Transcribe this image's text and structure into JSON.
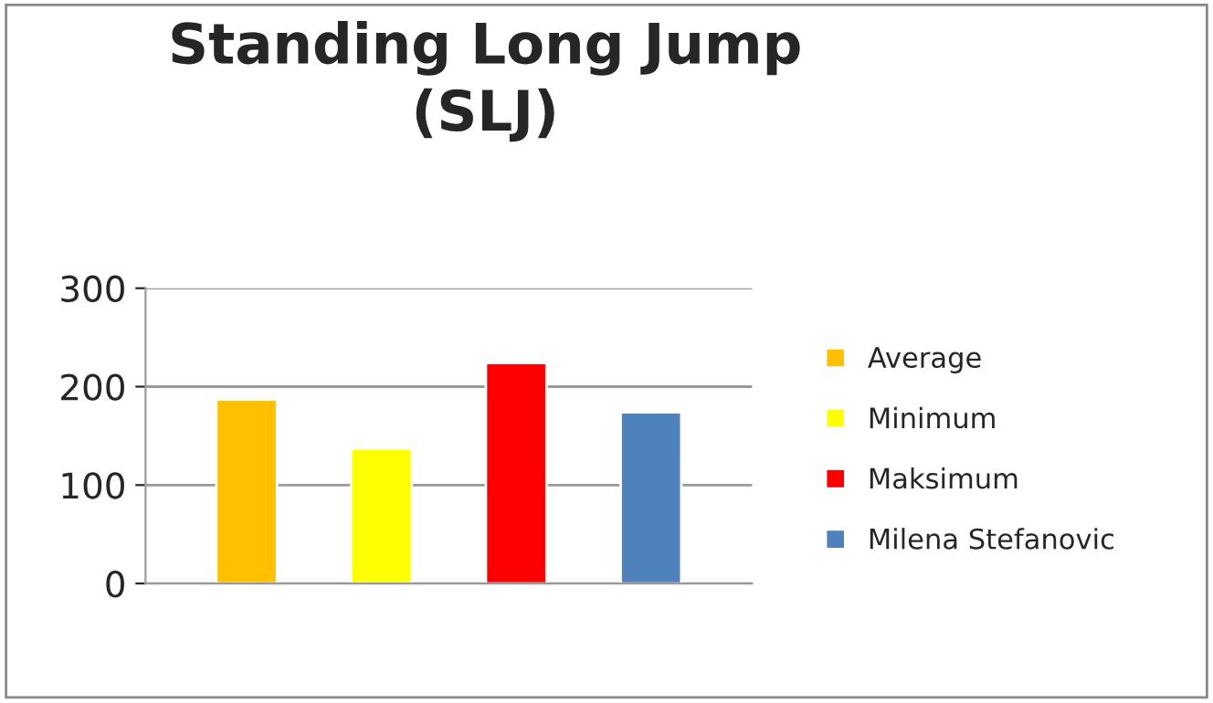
{
  "chart_data": {
    "type": "bar",
    "title": "Standing Long Jump\n(SLJ)",
    "categories": [
      null
    ],
    "series": [
      {
        "name": "Average",
        "color": "#ffc000",
        "values": [
          187
        ]
      },
      {
        "name": "Minimum",
        "color": "#ffff00",
        "values": [
          137
        ]
      },
      {
        "name": "Maksimum",
        "color": "#ff0000",
        "values": [
          224
        ]
      },
      {
        "name": "Milena Stefanovic",
        "color": "#4f81bd",
        "values": [
          174
        ]
      }
    ],
    "ylim": [
      0,
      300
    ],
    "yticks": [
      0,
      100,
      200,
      300
    ],
    "grid": "y",
    "legend": "right",
    "tick_labels": "y"
  }
}
